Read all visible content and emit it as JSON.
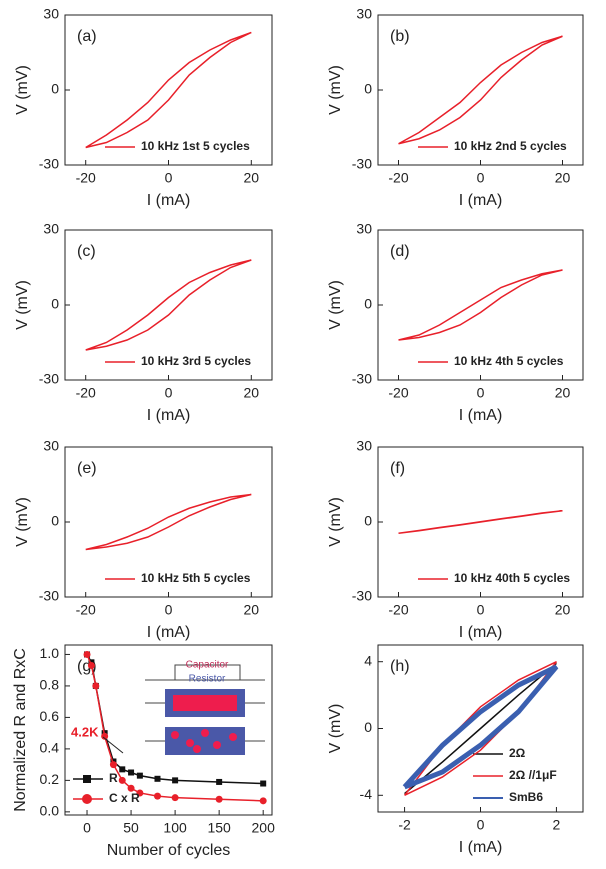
{
  "chart_data": [
    {
      "type": "line",
      "panel_label": "(a)",
      "xlabel": "I (mA)",
      "ylabel": "V (mV)",
      "x": [
        -20,
        -15,
        -10,
        -5,
        0,
        5,
        10,
        15,
        20,
        15,
        10,
        5,
        0,
        -5,
        -10,
        -15,
        -20
      ],
      "series": [
        {
          "name": "10 kHz 1st 5 cycles",
          "color": "#e8202a",
          "values": [
            -23,
            -21,
            -17,
            -12,
            -4,
            6,
            13,
            19,
            23,
            20,
            16,
            11,
            4,
            -5,
            -12,
            -18,
            -23
          ]
        }
      ],
      "xlim": [
        -25,
        25
      ],
      "ylim": [
        -30,
        30
      ],
      "xticks": [
        -20,
        0,
        20
      ],
      "yticks": [
        -30,
        0,
        30
      ]
    },
    {
      "type": "line",
      "panel_label": "(b)",
      "xlabel": "I (mA)",
      "ylabel": "V (mV)",
      "x": [
        -20,
        -15,
        -10,
        -5,
        0,
        5,
        10,
        15,
        20,
        15,
        10,
        5,
        0,
        -5,
        -10,
        -15,
        -20
      ],
      "series": [
        {
          "name": "10 kHz 2nd 5 cycles",
          "color": "#e8202a",
          "values": [
            -21.5,
            -19.5,
            -16,
            -11,
            -4,
            5,
            12,
            18,
            21.5,
            19,
            15,
            10,
            3,
            -5,
            -11,
            -17,
            -21.5
          ]
        }
      ],
      "xlim": [
        -25,
        25
      ],
      "ylim": [
        -30,
        30
      ],
      "xticks": [
        -20,
        0,
        20
      ],
      "yticks": [
        -30,
        0,
        30
      ]
    },
    {
      "type": "line",
      "panel_label": "(c)",
      "xlabel": "I (mA)",
      "ylabel": "V (mV)",
      "x": [
        -20,
        -15,
        -10,
        -5,
        0,
        5,
        10,
        15,
        20,
        15,
        10,
        5,
        0,
        -5,
        -10,
        -15,
        -20
      ],
      "series": [
        {
          "name": "10 kHz 3rd 5 cycles",
          "color": "#e8202a",
          "values": [
            -18,
            -16.5,
            -14,
            -10,
            -4,
            4,
            10,
            15,
            18,
            16,
            13,
            9,
            3,
            -4,
            -10,
            -15,
            -18
          ]
        }
      ],
      "xlim": [
        -25,
        25
      ],
      "ylim": [
        -30,
        30
      ],
      "xticks": [
        -20,
        0,
        20
      ],
      "yticks": [
        -30,
        0,
        30
      ]
    },
    {
      "type": "line",
      "panel_label": "(d)",
      "xlabel": "I (mA)",
      "ylabel": "V (mV)",
      "x": [
        -20,
        -15,
        -10,
        -5,
        0,
        5,
        10,
        15,
        20,
        15,
        10,
        5,
        0,
        -5,
        -10,
        -15,
        -20
      ],
      "series": [
        {
          "name": "10 kHz 4th 5 cycles",
          "color": "#e8202a",
          "values": [
            -14,
            -13,
            -11,
            -8,
            -3,
            3,
            8,
            12,
            14,
            12.5,
            10,
            7,
            2,
            -3,
            -8,
            -12,
            -14
          ]
        }
      ],
      "xlim": [
        -25,
        25
      ],
      "ylim": [
        -30,
        30
      ],
      "xticks": [
        -20,
        0,
        20
      ],
      "yticks": [
        -30,
        0,
        30
      ]
    },
    {
      "type": "line",
      "panel_label": "(e)",
      "xlabel": "I (mA)",
      "ylabel": "V (mV)",
      "x": [
        -20,
        -15,
        -10,
        -5,
        0,
        5,
        10,
        15,
        20,
        15,
        10,
        5,
        0,
        -5,
        -10,
        -15,
        -20
      ],
      "series": [
        {
          "name": "10 kHz 5th 5 cycles",
          "color": "#e8202a",
          "values": [
            -11,
            -10,
            -8.5,
            -6,
            -2,
            2.5,
            6,
            9,
            11,
            10,
            8,
            5.5,
            2,
            -2.5,
            -6,
            -9,
            -11
          ]
        }
      ],
      "xlim": [
        -25,
        25
      ],
      "ylim": [
        -30,
        30
      ],
      "xticks": [
        -20,
        0,
        20
      ],
      "yticks": [
        -30,
        0,
        30
      ]
    },
    {
      "type": "line",
      "panel_label": "(f)",
      "xlabel": "I (mA)",
      "ylabel": "V (mV)",
      "x": [
        -20,
        -15,
        -10,
        -5,
        0,
        5,
        10,
        15,
        20,
        15,
        10,
        5,
        0,
        -5,
        -10,
        -15,
        -20
      ],
      "series": [
        {
          "name": "10 kHz 40th 5 cycles",
          "color": "#e8202a",
          "values": [
            -4.5,
            -3.5,
            -2.3,
            -1.2,
            0,
            1.2,
            2.3,
            3.5,
            4.5,
            3.6,
            2.4,
            1.3,
            0.1,
            -1.1,
            -2.2,
            -3.4,
            -4.5
          ]
        }
      ],
      "xlim": [
        -25,
        25
      ],
      "ylim": [
        -30,
        30
      ],
      "xticks": [
        -20,
        0,
        20
      ],
      "yticks": [
        -30,
        0,
        30
      ]
    },
    {
      "type": "line",
      "panel_label": "(g)",
      "xlabel": "Number of cycles",
      "ylabel": "Normalized R and RxC",
      "annotation": "4.2K",
      "inset_labels": [
        "Capacitor",
        "Resistor"
      ],
      "x": [
        0,
        5,
        10,
        20,
        30,
        40,
        50,
        60,
        80,
        100,
        150,
        200
      ],
      "series": [
        {
          "name": "R",
          "color": "#111111",
          "marker": "square",
          "values": [
            1.0,
            0.95,
            0.8,
            0.5,
            0.32,
            0.27,
            0.25,
            0.23,
            0.21,
            0.2,
            0.19,
            0.18
          ]
        },
        {
          "name": "C x R",
          "color": "#e8202a",
          "marker": "circle",
          "values": [
            1.0,
            0.93,
            0.8,
            0.48,
            0.3,
            0.2,
            0.15,
            0.12,
            0.1,
            0.09,
            0.08,
            0.07
          ]
        }
      ],
      "xlim": [
        -25,
        210
      ],
      "ylim": [
        -0.02,
        1.06
      ],
      "xticks": [
        0,
        50,
        100,
        150,
        200
      ],
      "yticks": [
        {
          "value": 0,
          "label": "0.0"
        },
        0.2,
        0.4,
        0.6,
        0.8,
        {
          "value": 1,
          "label": "1.0"
        }
      ]
    },
    {
      "type": "line",
      "panel_label": "(h)",
      "xlabel": "I (mA)",
      "ylabel": "V (mV)",
      "x": [
        -2,
        -1,
        0,
        1,
        2,
        1,
        0,
        -1,
        -2
      ],
      "series": [
        {
          "name": "2Ω",
          "color": "#111111",
          "values": [
            -3.9,
            -2,
            0,
            2,
            3.9,
            2,
            0,
            -2,
            -3.9
          ]
        },
        {
          "name": "2Ω //1μF",
          "color": "#e8202a",
          "values": [
            -4,
            -2.9,
            -1.3,
            1,
            4,
            2.9,
            1.3,
            -1,
            -4
          ]
        },
        {
          "name": "SmB6",
          "color": "#3a5fb0",
          "values": [
            -3.5,
            -2.6,
            -1,
            1,
            3.7,
            2.6,
            1,
            -1,
            -3.5
          ]
        }
      ],
      "xlim": [
        -2.7,
        2.7
      ],
      "ylim": [
        -5,
        5
      ],
      "xticks": [
        -2,
        0,
        2
      ],
      "yticks": [
        -4,
        0,
        4
      ]
    }
  ]
}
